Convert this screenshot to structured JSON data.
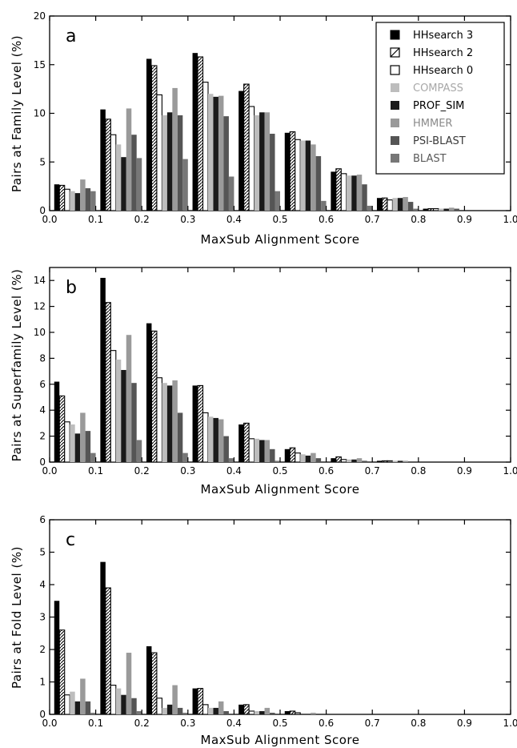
{
  "chart_data": [
    {
      "type": "bar",
      "panel_label": "a",
      "xlabel": "MaxSub Alignment Score",
      "ylabel": "Pairs at Family Level (%)",
      "xlim": [
        0.0,
        1.0
      ],
      "ylim": [
        0,
        20
      ],
      "xticks": [
        "0.0",
        "0.1",
        "0.2",
        "0.3",
        "0.4",
        "0.5",
        "0.6",
        "0.7",
        "0.8",
        "0.9",
        "1.0"
      ],
      "yticks": [
        "0",
        "5",
        "10",
        "15",
        "20"
      ],
      "categories": [
        "0.0-0.1",
        "0.1-0.2",
        "0.2-0.3",
        "0.3-0.4",
        "0.4-0.5",
        "0.5-0.6",
        "0.6-0.7",
        "0.7-0.8",
        "0.8-0.9",
        "0.9-1.0"
      ],
      "legend_position": "top-right",
      "series": [
        {
          "name": "HHsearch 3",
          "values": [
            2.7,
            10.4,
            15.6,
            16.2,
            12.3,
            8.0,
            4.0,
            1.3,
            0.2,
            0.0
          ]
        },
        {
          "name": "HHsearch 2",
          "values": [
            2.6,
            9.4,
            14.9,
            15.8,
            13.0,
            8.1,
            4.3,
            1.3,
            0.2,
            0.0
          ]
        },
        {
          "name": "HHsearch 0",
          "values": [
            2.2,
            7.8,
            11.9,
            13.2,
            10.7,
            7.3,
            3.8,
            1.1,
            0.2,
            0.0
          ]
        },
        {
          "name": "COMPASS",
          "values": [
            2.0,
            6.8,
            9.8,
            12.0,
            9.8,
            7.2,
            3.6,
            1.3,
            0.2,
            0.0
          ]
        },
        {
          "name": "PROF_SIM",
          "values": [
            1.8,
            5.5,
            10.1,
            11.7,
            10.1,
            7.2,
            3.6,
            1.3,
            0.2,
            0.0
          ]
        },
        {
          "name": "HMMER",
          "values": [
            3.2,
            10.5,
            12.6,
            11.8,
            10.1,
            6.8,
            3.7,
            1.4,
            0.3,
            0.0
          ]
        },
        {
          "name": "PSI-BLAST",
          "values": [
            2.3,
            7.8,
            9.8,
            9.7,
            7.9,
            5.6,
            2.7,
            0.9,
            0.2,
            0.0
          ]
        },
        {
          "name": "BLAST",
          "values": [
            2.0,
            5.4,
            5.3,
            3.5,
            2.0,
            1.0,
            0.5,
            0.2,
            0.0,
            0.0
          ]
        }
      ]
    },
    {
      "type": "bar",
      "panel_label": "b",
      "xlabel": "MaxSub Alignment Score",
      "ylabel": "Pairs at Superfamily Level (%)",
      "xlim": [
        0.0,
        1.0
      ],
      "ylim": [
        0,
        15
      ],
      "xticks": [
        "0.0",
        "0.1",
        "0.2",
        "0.3",
        "0.4",
        "0.5",
        "0.6",
        "0.7",
        "0.8",
        "0.9",
        "1.0"
      ],
      "yticks": [
        "0",
        "2",
        "4",
        "6",
        "8",
        "10",
        "12",
        "14"
      ],
      "categories": [
        "0.0-0.1",
        "0.1-0.2",
        "0.2-0.3",
        "0.3-0.4",
        "0.4-0.5",
        "0.5-0.6",
        "0.6-0.7",
        "0.7-0.8",
        "0.8-0.9",
        "0.9-1.0"
      ],
      "series": [
        {
          "name": "HHsearch 3",
          "values": [
            6.2,
            14.2,
            10.7,
            5.9,
            2.9,
            1.0,
            0.3,
            0.1,
            0.0,
            0.0
          ]
        },
        {
          "name": "HHsearch 2",
          "values": [
            5.1,
            12.3,
            10.1,
            5.9,
            3.0,
            1.1,
            0.4,
            0.1,
            0.0,
            0.0
          ]
        },
        {
          "name": "HHsearch 0",
          "values": [
            3.1,
            8.6,
            6.5,
            3.8,
            1.8,
            0.7,
            0.2,
            0.1,
            0.0,
            0.0
          ]
        },
        {
          "name": "COMPASS",
          "values": [
            2.9,
            7.9,
            6.1,
            3.5,
            1.8,
            0.6,
            0.2,
            0.1,
            0.0,
            0.0
          ]
        },
        {
          "name": "PROF_SIM",
          "values": [
            2.2,
            7.1,
            5.9,
            3.4,
            1.7,
            0.5,
            0.2,
            0.1,
            0.0,
            0.0
          ]
        },
        {
          "name": "HMMER",
          "values": [
            3.8,
            9.8,
            6.3,
            3.3,
            1.7,
            0.7,
            0.3,
            0.1,
            0.0,
            0.0
          ]
        },
        {
          "name": "PSI-BLAST",
          "values": [
            2.4,
            6.1,
            3.8,
            2.0,
            1.0,
            0.3,
            0.1,
            0.0,
            0.0,
            0.0
          ]
        },
        {
          "name": "BLAST",
          "values": [
            0.7,
            1.7,
            0.7,
            0.3,
            0.1,
            0.0,
            0.0,
            0.0,
            0.0,
            0.0
          ]
        }
      ]
    },
    {
      "type": "bar",
      "panel_label": "c",
      "xlabel": "MaxSub Alignment Score",
      "ylabel": "Pairs at Fold Level (%)",
      "xlim": [
        0.0,
        1.0
      ],
      "ylim": [
        0,
        6
      ],
      "xticks": [
        "0.0",
        "0.1",
        "0.2",
        "0.3",
        "0.4",
        "0.5",
        "0.6",
        "0.7",
        "0.8",
        "0.9",
        "1.0"
      ],
      "yticks": [
        "0",
        "1",
        "2",
        "3",
        "4",
        "5",
        "6"
      ],
      "categories": [
        "0.0-0.1",
        "0.1-0.2",
        "0.2-0.3",
        "0.3-0.4",
        "0.4-0.5",
        "0.5-0.6",
        "0.6-0.7",
        "0.7-0.8",
        "0.8-0.9",
        "0.9-1.0"
      ],
      "series": [
        {
          "name": "HHsearch 3",
          "values": [
            3.5,
            4.7,
            2.1,
            0.8,
            0.3,
            0.1,
            0.0,
            0.0,
            0.0,
            0.0
          ]
        },
        {
          "name": "HHsearch 2",
          "values": [
            2.6,
            3.9,
            1.9,
            0.8,
            0.3,
            0.1,
            0.0,
            0.0,
            0.0,
            0.0
          ]
        },
        {
          "name": "HHsearch 0",
          "values": [
            0.6,
            0.9,
            0.5,
            0.3,
            0.1,
            0.05,
            0.0,
            0.0,
            0.0,
            0.0
          ]
        },
        {
          "name": "COMPASS",
          "values": [
            0.7,
            0.8,
            0.2,
            0.2,
            0.1,
            0.0,
            0.0,
            0.0,
            0.0,
            0.0
          ]
        },
        {
          "name": "PROF_SIM",
          "values": [
            0.4,
            0.6,
            0.3,
            0.2,
            0.1,
            0.0,
            0.0,
            0.0,
            0.0,
            0.0
          ]
        },
        {
          "name": "HMMER",
          "values": [
            1.1,
            1.9,
            0.9,
            0.4,
            0.2,
            0.05,
            0.0,
            0.0,
            0.0,
            0.0
          ]
        },
        {
          "name": "PSI-BLAST",
          "values": [
            0.4,
            0.5,
            0.2,
            0.1,
            0.05,
            0.0,
            0.0,
            0.0,
            0.0,
            0.0
          ]
        },
        {
          "name": "BLAST",
          "values": [
            0.05,
            0.1,
            0.05,
            0.0,
            0.0,
            0.0,
            0.0,
            0.0,
            0.0,
            0.0
          ]
        }
      ]
    }
  ],
  "series_styles": [
    {
      "fill": "#000000",
      "text_color": "#000000",
      "pattern": "solid"
    },
    {
      "fill": "#ffffff",
      "text_color": "#000000",
      "pattern": "hatch"
    },
    {
      "fill": "#ffffff",
      "text_color": "#000000",
      "pattern": "open"
    },
    {
      "fill": "#bdbdbd",
      "text_color": "#a8a8a8",
      "pattern": "solid"
    },
    {
      "fill": "#1a1a1a",
      "text_color": "#000000",
      "pattern": "solid"
    },
    {
      "fill": "#9a9a9a",
      "text_color": "#8a8a8a",
      "pattern": "solid"
    },
    {
      "fill": "#555555",
      "text_color": "#3a3a3a",
      "pattern": "solid"
    },
    {
      "fill": "#777777",
      "text_color": "#5a5a5a",
      "pattern": "solid"
    }
  ]
}
